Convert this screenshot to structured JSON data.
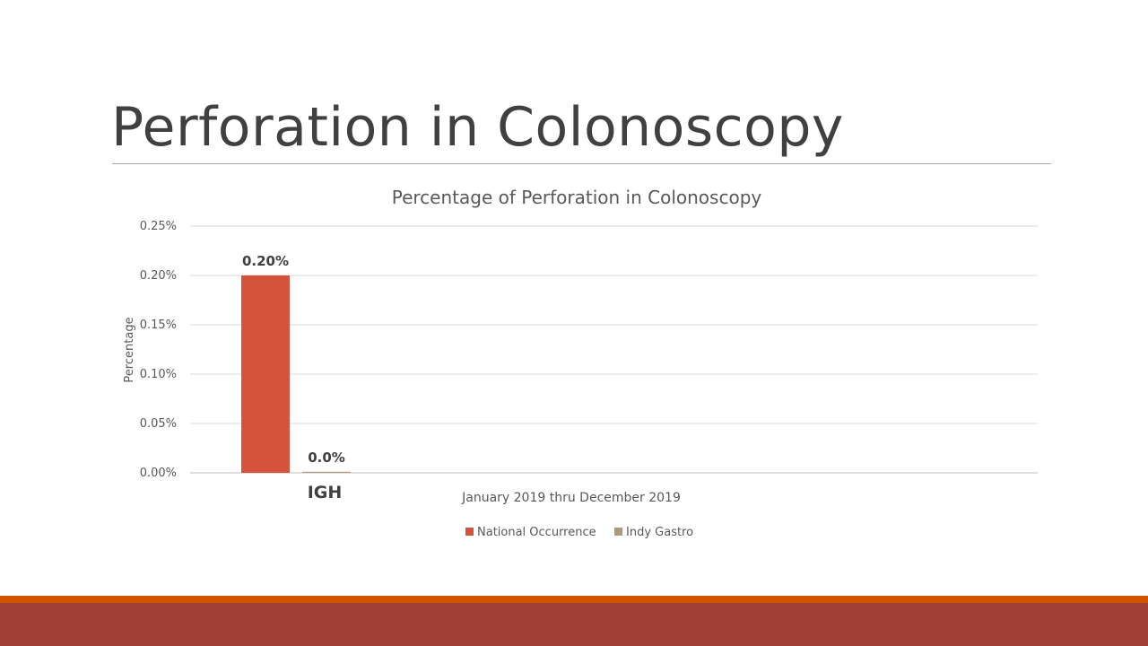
{
  "slide": {
    "title": "Perforation in Colonoscopy"
  },
  "colors": {
    "national": "#d5533a",
    "indy": "#b09a7e",
    "footer_top": "#d35400",
    "footer_bottom": "#a23e35"
  },
  "chart_data": {
    "type": "bar",
    "title": "Percentage of Perforation in Colonoscopy",
    "xlabel": "January 2019 thru December 2019",
    "ylabel": "Percentage",
    "ylim": [
      0,
      0.25
    ],
    "yticks": [
      "0.00%",
      "0.05%",
      "0.10%",
      "0.15%",
      "0.20%",
      "0.25%"
    ],
    "ytick_values": [
      0,
      0.05,
      0.1,
      0.15,
      0.2,
      0.25
    ],
    "grid": true,
    "legend_position": "bottom",
    "group_label": "IGH",
    "series": [
      {
        "name": "National Occurrence",
        "value": 0.2,
        "label": "0.20%",
        "color": "#d5533a"
      },
      {
        "name": "Indy Gastro",
        "value": 0.0,
        "label": "0.0%",
        "color": "#b09a7e"
      }
    ]
  }
}
